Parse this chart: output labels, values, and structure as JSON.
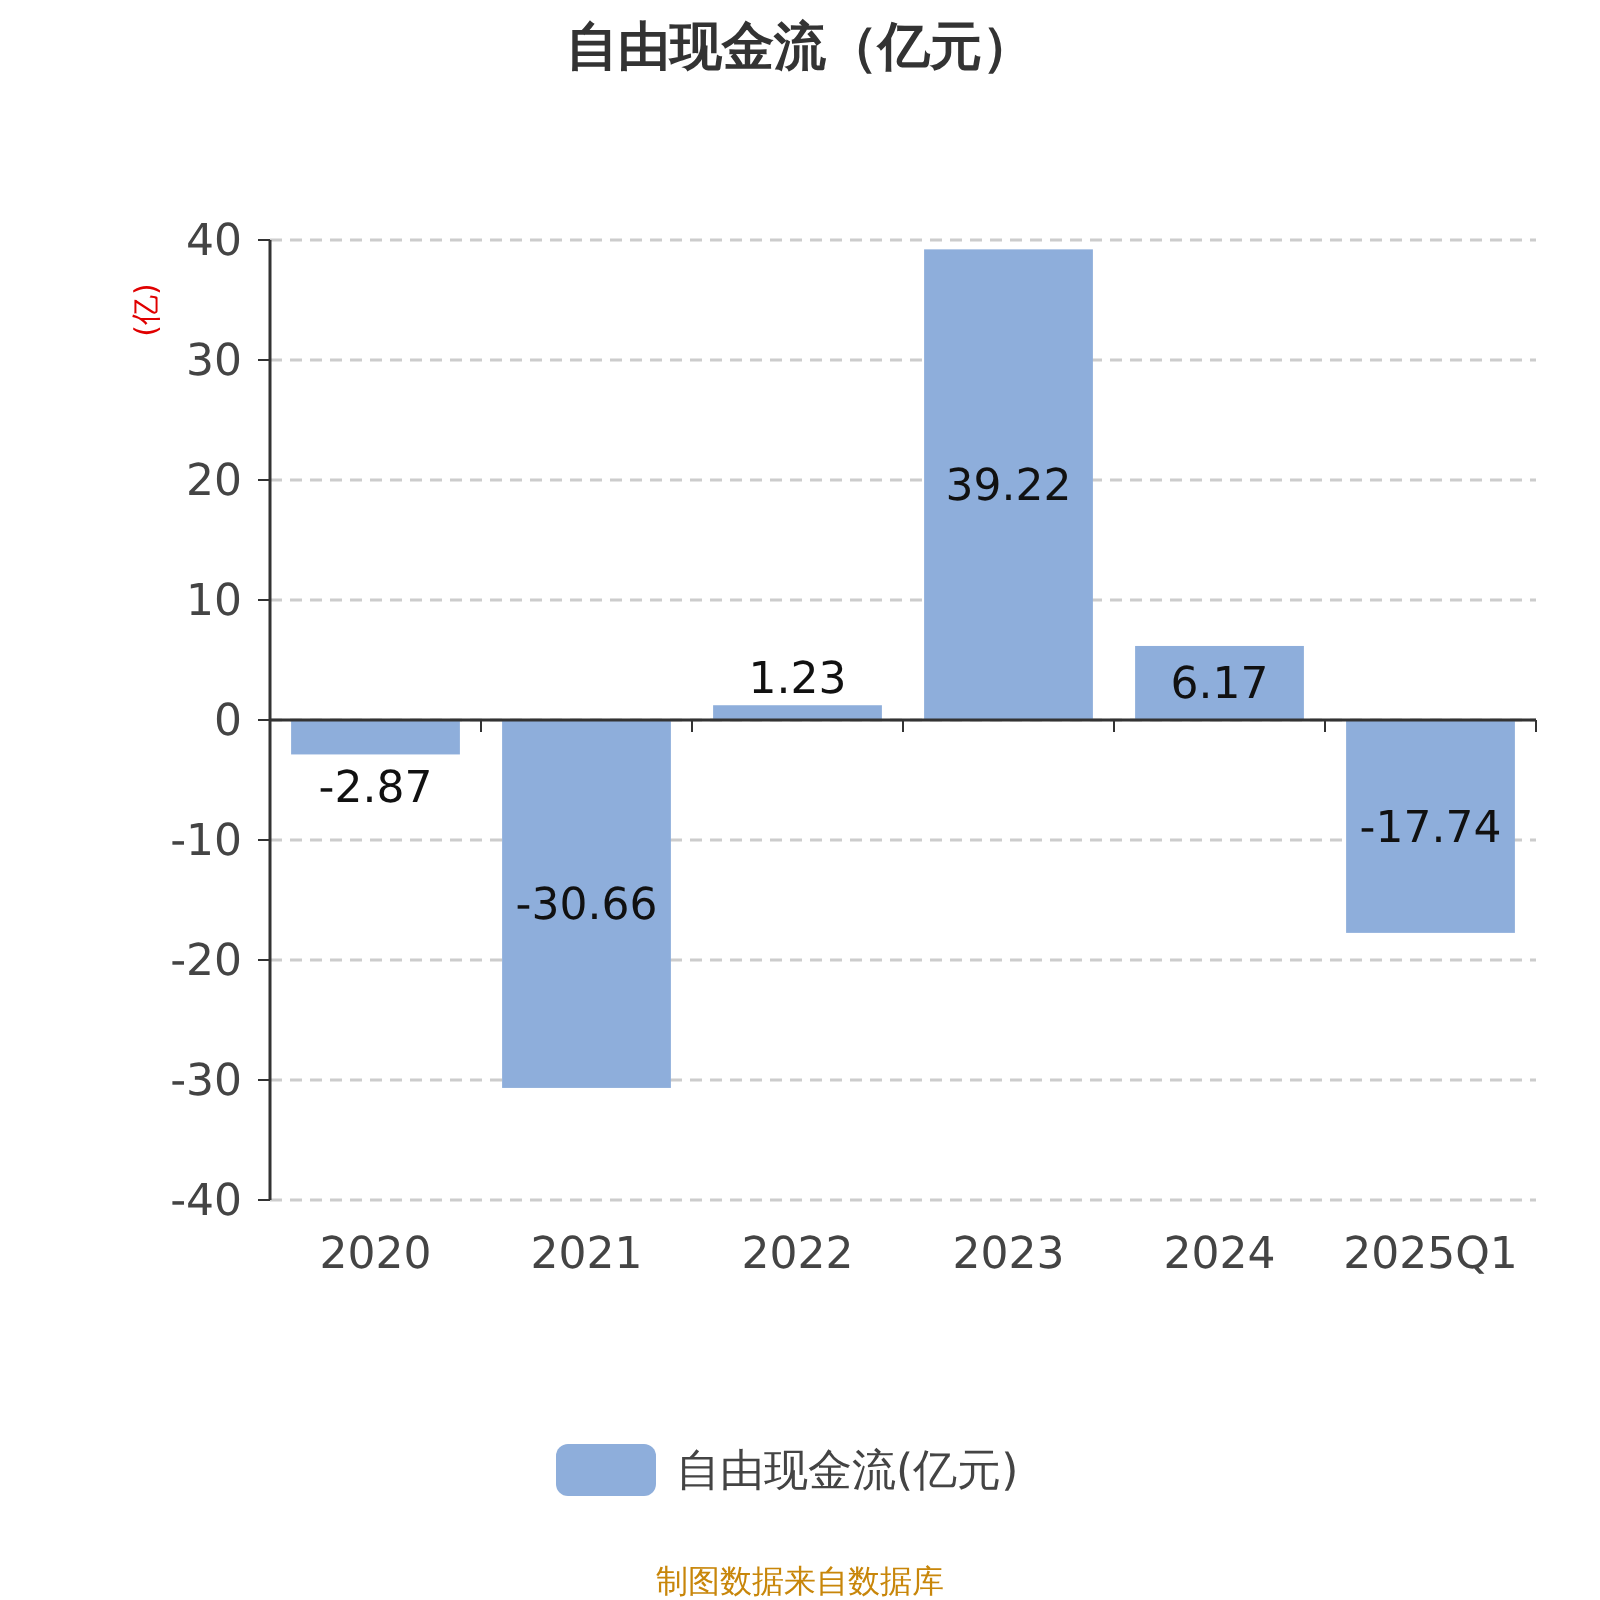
{
  "chart_data": {
    "type": "bar",
    "title": "自由现金流（亿元）",
    "ylabel": "(亿)",
    "categories": [
      "2020",
      "2021",
      "2022",
      "2023",
      "2024",
      "2025Q1"
    ],
    "series": [
      {
        "name": "自由现金流(亿元)",
        "color": "#8eaedb",
        "values": [
          -2.87,
          -30.66,
          1.23,
          39.22,
          6.17,
          -17.74
        ]
      }
    ],
    "ylim": [
      -40,
      40
    ],
    "yticks": [
      -40,
      -30,
      -20,
      -10,
      0,
      10,
      20,
      30,
      40
    ],
    "grid": "y",
    "legend": "bottom",
    "data_labels": true,
    "annotations": [
      "制图数据来自数据库"
    ]
  }
}
